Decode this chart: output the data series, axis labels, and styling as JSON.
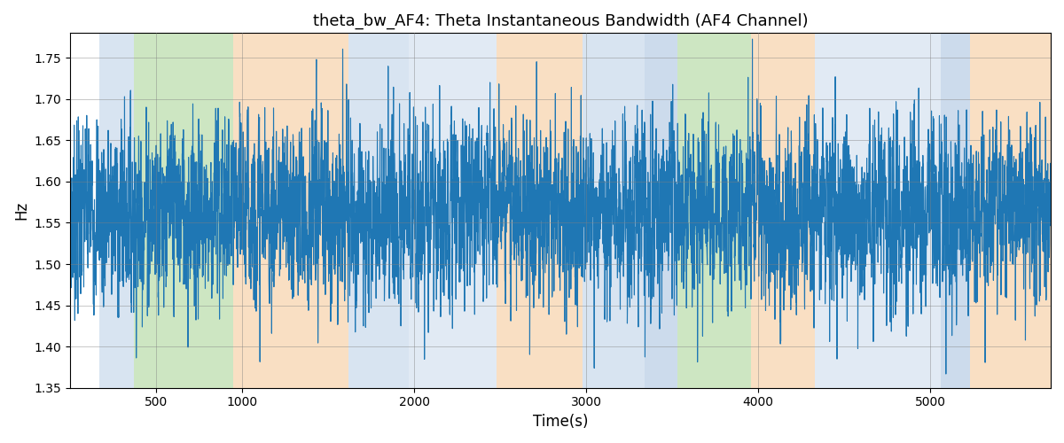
{
  "title": "theta_bw_AF4: Theta Instantaneous Bandwidth (AF4 Channel)",
  "xlabel": "Time(s)",
  "ylabel": "Hz",
  "xlim": [
    0,
    5700
  ],
  "ylim": [
    1.35,
    1.78
  ],
  "line_color": "#1f77b4",
  "line_width": 0.8,
  "background_color": "#ffffff",
  "n_points": 5700,
  "mean": 1.565,
  "std": 0.055,
  "bands": [
    {
      "xmin": 170,
      "xmax": 370,
      "color": "#aac4e0",
      "alpha": 0.45
    },
    {
      "xmin": 370,
      "xmax": 950,
      "color": "#90c978",
      "alpha": 0.45
    },
    {
      "xmin": 950,
      "xmax": 1620,
      "color": "#f5c089",
      "alpha": 0.5
    },
    {
      "xmin": 1620,
      "xmax": 1970,
      "color": "#aac4e0",
      "alpha": 0.45
    },
    {
      "xmin": 1970,
      "xmax": 2480,
      "color": "#aac4e0",
      "alpha": 0.35
    },
    {
      "xmin": 2480,
      "xmax": 2980,
      "color": "#f5c089",
      "alpha": 0.5
    },
    {
      "xmin": 2980,
      "xmax": 3340,
      "color": "#aac4e0",
      "alpha": 0.45
    },
    {
      "xmin": 3340,
      "xmax": 3530,
      "color": "#aac4e0",
      "alpha": 0.6
    },
    {
      "xmin": 3530,
      "xmax": 3960,
      "color": "#90c978",
      "alpha": 0.45
    },
    {
      "xmin": 3960,
      "xmax": 4330,
      "color": "#f5c089",
      "alpha": 0.5
    },
    {
      "xmin": 4330,
      "xmax": 5060,
      "color": "#aac4e0",
      "alpha": 0.35
    },
    {
      "xmin": 5060,
      "xmax": 5230,
      "color": "#aac4e0",
      "alpha": 0.6
    },
    {
      "xmin": 5230,
      "xmax": 5700,
      "color": "#f5c089",
      "alpha": 0.5
    }
  ]
}
